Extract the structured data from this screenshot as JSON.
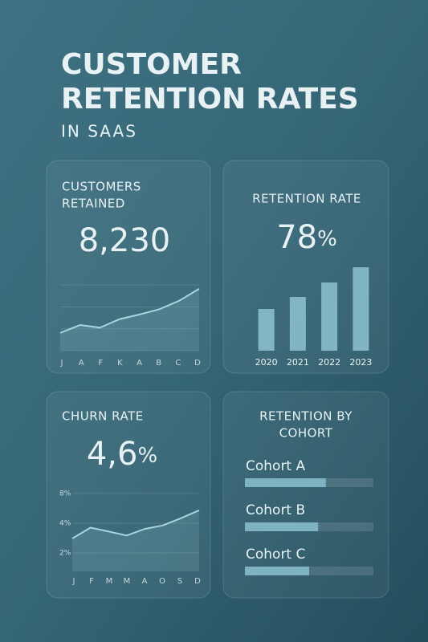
{
  "title": [
    "CUSTOMER",
    "RETENTION RATES"
  ],
  "subtitle": "IN SAAS",
  "chart_data": [
    {
      "type": "line",
      "title": [
        "CUSTOMERS",
        "RETAINED"
      ],
      "kpi_value": "8,230",
      "categories": [
        "J",
        "A",
        "F",
        "K",
        "A",
        "B",
        "C",
        "D"
      ],
      "values": [
        27,
        39,
        35,
        48,
        55,
        63,
        76,
        94
      ],
      "ylim": [
        0,
        100
      ],
      "color": "#a8d4e0"
    },
    {
      "type": "bar",
      "title": [
        "RETENTION RATE"
      ],
      "kpi_value": "78",
      "kpi_unit": "%",
      "categories": [
        "2020",
        "2021",
        "2022",
        "2023"
      ],
      "values": [
        52,
        67,
        85,
        104
      ],
      "ylim": [
        0,
        110
      ],
      "color": "#8fc3d1"
    },
    {
      "type": "line",
      "title": [
        "CHURN RATE"
      ],
      "kpi_value": "4,6",
      "kpi_unit": "%",
      "categories": [
        "J",
        "F",
        "M",
        "M",
        "A",
        "O",
        "S",
        "D"
      ],
      "values": [
        2.8,
        3.6,
        3.3,
        3.0,
        3.5,
        3.8,
        4.5,
        5.4
      ],
      "log_scale": true,
      "ylim": [
        1.3,
        10
      ],
      "yticks": [
        {
          "value": 8,
          "label": "8%"
        },
        {
          "value": 4,
          "label": "4%"
        },
        {
          "value": 2,
          "label": "2%"
        }
      ],
      "color": "#a8d4e0"
    },
    {
      "type": "hbar",
      "title": [
        "RETENTION BY",
        "COHORT"
      ],
      "categories": [
        "Cohort A",
        "Cohort B",
        "Cohort C"
      ],
      "values": [
        63,
        57,
        50
      ],
      "xlim": [
        0,
        100
      ],
      "color": "#7fb3c2"
    }
  ]
}
